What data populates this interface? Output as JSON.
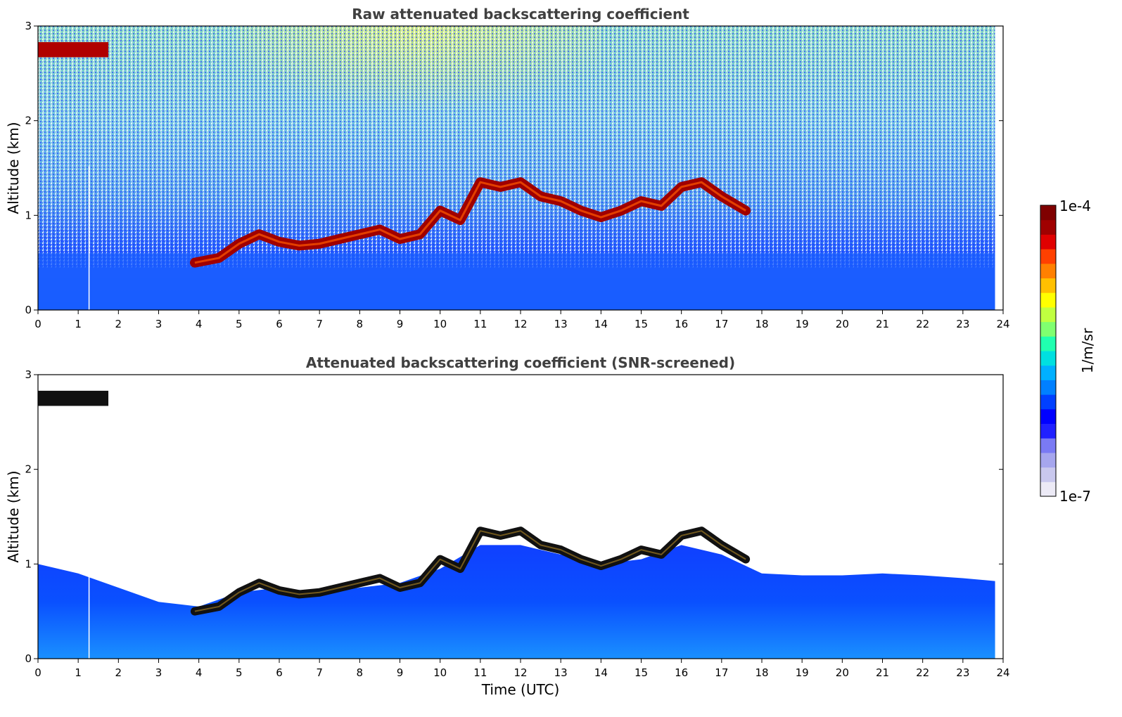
{
  "chart_data": [
    {
      "type": "heatmap",
      "title": "Raw attenuated backscattering coefficient",
      "xlabel": "",
      "ylabel": "Altitude (km)",
      "xlim": [
        0,
        24
      ],
      "ylim": [
        0,
        3
      ],
      "xticks": [
        "0",
        "1",
        "2",
        "3",
        "4",
        "5",
        "6",
        "7",
        "8",
        "9",
        "10",
        "11",
        "12",
        "13",
        "14",
        "15",
        "16",
        "17",
        "18",
        "19",
        "20",
        "21",
        "22",
        "23",
        "24"
      ],
      "yticks": [
        "0",
        "1",
        "2",
        "3"
      ],
      "colorscale": "log",
      "data_end_time": 23.8,
      "cloud_layers": [
        {
          "t_start": 0.0,
          "t_end": 1.75,
          "altitude_km": 2.75
        },
        {
          "t": [
            3.9,
            4.5,
            5.0,
            5.5,
            6.0,
            6.5,
            7.0,
            7.5,
            8.0,
            8.5,
            9.0,
            9.5,
            10.0,
            10.5,
            11.0,
            11.5,
            12.0,
            12.5,
            13.0,
            13.5,
            14.0,
            14.5,
            15.0,
            15.5,
            16.0,
            16.5,
            17.0,
            17.6
          ],
          "altitude_km": [
            0.5,
            0.55,
            0.7,
            0.8,
            0.72,
            0.68,
            0.7,
            0.75,
            0.8,
            0.85,
            0.75,
            0.8,
            1.05,
            0.95,
            1.35,
            1.3,
            1.35,
            1.2,
            1.15,
            1.05,
            0.98,
            1.05,
            1.15,
            1.1,
            1.3,
            1.35,
            1.2,
            1.05
          ]
        }
      ]
    },
    {
      "type": "heatmap",
      "title": "Attenuated backscattering coefficient (SNR-screened)",
      "xlabel": "Time (UTC)",
      "ylabel": "Altitude (km)",
      "xlim": [
        0,
        24
      ],
      "ylim": [
        0,
        3
      ],
      "xticks": [
        "0",
        "1",
        "2",
        "3",
        "4",
        "5",
        "6",
        "7",
        "8",
        "9",
        "10",
        "11",
        "12",
        "13",
        "14",
        "15",
        "16",
        "17",
        "18",
        "19",
        "20",
        "21",
        "22",
        "23",
        "24"
      ],
      "yticks": [
        "0",
        "1",
        "2",
        "3"
      ],
      "colorscale": "log",
      "data_end_time": 23.8,
      "boundary_layer_top_km": {
        "t": [
          0,
          1,
          2,
          3,
          4,
          5,
          6,
          7,
          8,
          9,
          10,
          11,
          12,
          13,
          14,
          15,
          16,
          17,
          18,
          19,
          20,
          21,
          22,
          23,
          23.8
        ],
        "altitude_km": [
          1.0,
          0.9,
          0.75,
          0.6,
          0.55,
          0.7,
          0.75,
          0.7,
          0.75,
          0.8,
          0.95,
          1.2,
          1.2,
          1.1,
          1.0,
          1.05,
          1.2,
          1.1,
          0.9,
          0.88,
          0.88,
          0.9,
          0.88,
          0.85,
          0.82
        ]
      }
    }
  ],
  "colorbar": {
    "label": "1/m/sr",
    "max_label": "1e-4",
    "min_label": "1e-7",
    "colors": [
      "#eceaf6",
      "#c9c8ee",
      "#a6a6ee",
      "#7a7af4",
      "#2020ff",
      "#0000ff",
      "#0040ff",
      "#0080ff",
      "#00b0ff",
      "#00e0e0",
      "#20ffb0",
      "#80ff70",
      "#c0ff40",
      "#ffff00",
      "#ffc000",
      "#ff8000",
      "#ff4000",
      "#e00000",
      "#a00000",
      "#7f0000"
    ]
  }
}
